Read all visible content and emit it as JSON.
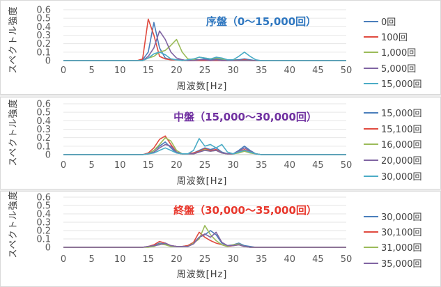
{
  "chart_data": [
    {
      "type": "line",
      "title": "序盤（0～15,000回）",
      "title_color": "#2f77c0",
      "xlabel": "周波数[Hz]",
      "ylabel": "スペクトル強度",
      "xlim": [
        0,
        50
      ],
      "ylim": [
        0,
        0.6
      ],
      "xticks": [
        0,
        5,
        10,
        15,
        20,
        25,
        30,
        35,
        40,
        45,
        50
      ],
      "yticks": [
        0,
        0.1,
        0.2,
        0.3,
        0.4,
        0.5,
        0.6
      ],
      "grid": true,
      "legend": "right",
      "x": [
        0,
        1,
        2,
        3,
        4,
        5,
        6,
        7,
        8,
        9,
        10,
        11,
        12,
        13,
        14,
        15,
        16,
        17,
        18,
        19,
        20,
        21,
        22,
        23,
        24,
        25,
        26,
        27,
        28,
        29,
        30,
        31,
        32,
        33,
        34,
        35,
        36,
        37,
        38,
        39,
        40,
        41,
        42,
        43,
        44,
        45,
        46,
        47,
        48,
        49,
        50
      ],
      "series": [
        {
          "name": "0回",
          "color": "#4a7ebb",
          "values": [
            0,
            0,
            0,
            0,
            0,
            0,
            0,
            0,
            0,
            0,
            0,
            0,
            0,
            0,
            0.01,
            0.1,
            0.45,
            0.15,
            0.03,
            0.01,
            0.01,
            0.01,
            0,
            0.01,
            0.01,
            0.02,
            0.01,
            0.02,
            0.01,
            0,
            0.01,
            0.01,
            0.02,
            0.01,
            0,
            0,
            0,
            0,
            0,
            0,
            0,
            0,
            0,
            0,
            0,
            0,
            0,
            0,
            0,
            0,
            0
          ]
        },
        {
          "name": "100回",
          "color": "#e04a3f",
          "values": [
            0,
            0,
            0,
            0,
            0,
            0,
            0,
            0,
            0,
            0,
            0,
            0,
            0,
            0,
            0.02,
            0.49,
            0.3,
            0.05,
            0.02,
            0.01,
            0.01,
            0,
            0,
            0,
            0,
            0,
            0,
            0,
            0,
            0,
            0,
            0,
            0.01,
            0,
            0,
            0,
            0,
            0,
            0,
            0,
            0,
            0,
            0,
            0,
            0,
            0,
            0,
            0,
            0,
            0,
            0
          ]
        },
        {
          "name": "1,000回",
          "color": "#9bbb59",
          "values": [
            0,
            0,
            0,
            0,
            0,
            0,
            0,
            0,
            0,
            0,
            0,
            0,
            0,
            0,
            0,
            0.03,
            0.05,
            0.1,
            0.12,
            0.18,
            0.25,
            0.1,
            0.02,
            0.01,
            0.04,
            0.03,
            0.02,
            0.03,
            0.02,
            0.01,
            0.01,
            0,
            0,
            0,
            0,
            0,
            0,
            0,
            0,
            0,
            0,
            0,
            0,
            0,
            0,
            0,
            0,
            0,
            0,
            0,
            0
          ]
        },
        {
          "name": "5,000回",
          "color": "#8064a2",
          "values": [
            0,
            0,
            0,
            0,
            0,
            0,
            0,
            0,
            0,
            0,
            0,
            0,
            0,
            0,
            0,
            0.05,
            0.15,
            0.35,
            0.25,
            0.1,
            0.03,
            0.01,
            0,
            0,
            0.01,
            0.01,
            0,
            0.01,
            0,
            0,
            0,
            0,
            0,
            0,
            0,
            0,
            0,
            0,
            0,
            0,
            0,
            0,
            0,
            0,
            0,
            0,
            0,
            0,
            0,
            0,
            0
          ]
        },
        {
          "name": "15,000回",
          "color": "#4bacc6",
          "values": [
            0,
            0,
            0,
            0,
            0,
            0,
            0,
            0,
            0,
            0,
            0,
            0,
            0,
            0,
            0,
            0.03,
            0.08,
            0.1,
            0.07,
            0.02,
            0.01,
            0,
            0.01,
            0.02,
            0.04,
            0.03,
            0.02,
            0.04,
            0.03,
            0.01,
            0.01,
            0.05,
            0.1,
            0.05,
            0.01,
            0,
            0,
            0,
            0,
            0,
            0,
            0,
            0,
            0,
            0,
            0,
            0,
            0,
            0,
            0,
            0
          ]
        }
      ]
    },
    {
      "type": "line",
      "title": "中盤（15,000～30,000回）",
      "title_color": "#7030a0",
      "xlabel": "周波数[Hz]",
      "ylabel": "スペクトル強度",
      "xlim": [
        0,
        50
      ],
      "ylim": [
        0,
        0.6
      ],
      "xticks": [
        0,
        5,
        10,
        15,
        20,
        25,
        30,
        35,
        40,
        45,
        50
      ],
      "yticks": [
        0,
        0.1,
        0.2,
        0.3,
        0.4,
        0.5,
        0.6
      ],
      "grid": true,
      "legend": "right",
      "x": [
        0,
        1,
        2,
        3,
        4,
        5,
        6,
        7,
        8,
        9,
        10,
        11,
        12,
        13,
        14,
        15,
        16,
        17,
        18,
        19,
        20,
        21,
        22,
        23,
        24,
        25,
        26,
        27,
        28,
        29,
        30,
        31,
        32,
        33,
        34,
        35,
        36,
        37,
        38,
        39,
        40,
        41,
        42,
        43,
        44,
        45,
        46,
        47,
        48,
        49,
        50
      ],
      "series": [
        {
          "name": "15,000回",
          "color": "#4a7ebb",
          "values": [
            0,
            0,
            0,
            0,
            0,
            0,
            0,
            0,
            0,
            0,
            0,
            0,
            0,
            0,
            0,
            0.01,
            0.05,
            0.1,
            0.15,
            0.08,
            0.02,
            0.01,
            0.01,
            0.02,
            0.05,
            0.08,
            0.06,
            0.08,
            0.03,
            0.01,
            0.01,
            0.05,
            0.1,
            0.05,
            0.01,
            0,
            0,
            0,
            0,
            0,
            0,
            0,
            0,
            0,
            0,
            0,
            0,
            0,
            0,
            0,
            0
          ]
        },
        {
          "name": "15,100回",
          "color": "#e04a3f",
          "values": [
            0,
            0,
            0,
            0,
            0,
            0,
            0,
            0,
            0,
            0,
            0,
            0,
            0,
            0,
            0,
            0.02,
            0.08,
            0.18,
            0.22,
            0.12,
            0.03,
            0.01,
            0.01,
            0.02,
            0.04,
            0.07,
            0.05,
            0.06,
            0.02,
            0.01,
            0.01,
            0.03,
            0.06,
            0.03,
            0.01,
            0,
            0,
            0,
            0,
            0,
            0,
            0,
            0,
            0,
            0,
            0,
            0,
            0,
            0,
            0,
            0
          ]
        },
        {
          "name": "16,000回",
          "color": "#9bbb59",
          "values": [
            0,
            0,
            0,
            0,
            0,
            0,
            0,
            0,
            0,
            0,
            0,
            0,
            0,
            0,
            0,
            0.01,
            0.05,
            0.12,
            0.2,
            0.16,
            0.05,
            0.01,
            0.01,
            0.01,
            0.03,
            0.06,
            0.04,
            0.05,
            0.02,
            0.01,
            0.01,
            0.02,
            0.04,
            0.02,
            0.01,
            0,
            0,
            0,
            0,
            0,
            0,
            0,
            0,
            0,
            0,
            0,
            0,
            0,
            0,
            0,
            0
          ]
        },
        {
          "name": "20,000回",
          "color": "#8064a2",
          "values": [
            0,
            0,
            0,
            0,
            0,
            0,
            0,
            0,
            0,
            0,
            0,
            0,
            0,
            0,
            0,
            0.01,
            0.03,
            0.08,
            0.12,
            0.1,
            0.03,
            0.01,
            0.01,
            0.01,
            0.03,
            0.05,
            0.04,
            0.05,
            0.02,
            0.01,
            0.01,
            0.04,
            0.08,
            0.04,
            0.01,
            0,
            0,
            0,
            0,
            0,
            0,
            0,
            0,
            0,
            0,
            0,
            0,
            0,
            0,
            0,
            0
          ]
        },
        {
          "name": "30,000回",
          "color": "#4bacc6",
          "values": [
            0,
            0,
            0,
            0,
            0,
            0,
            0,
            0,
            0,
            0,
            0,
            0,
            0,
            0,
            0,
            0.01,
            0.02,
            0.05,
            0.08,
            0.05,
            0.02,
            0.01,
            0.01,
            0.05,
            0.19,
            0.1,
            0.12,
            0.08,
            0.12,
            0.03,
            0.01,
            0.03,
            0.05,
            0.03,
            0.01,
            0,
            0,
            0,
            0,
            0,
            0,
            0,
            0,
            0,
            0,
            0,
            0,
            0,
            0,
            0,
            0
          ]
        }
      ]
    },
    {
      "type": "line",
      "title": "終盤（30,000～35,000回）",
      "title_color": "#e8372c",
      "xlabel": "周波数[Hz]",
      "ylabel": "スペクトル強度",
      "xlim": [
        0,
        50
      ],
      "ylim": [
        0,
        0.6
      ],
      "xticks": [
        0,
        5,
        10,
        15,
        20,
        25,
        30,
        35,
        40,
        45,
        50
      ],
      "yticks": [
        0,
        0.1,
        0.2,
        0.3,
        0.4,
        0.5,
        0.6
      ],
      "grid": true,
      "legend": "right",
      "x": [
        0,
        1,
        2,
        3,
        4,
        5,
        6,
        7,
        8,
        9,
        10,
        11,
        12,
        13,
        14,
        15,
        16,
        17,
        18,
        19,
        20,
        21,
        22,
        23,
        24,
        25,
        26,
        27,
        28,
        29,
        30,
        31,
        32,
        33,
        34,
        35,
        36,
        37,
        38,
        39,
        40,
        41,
        42,
        43,
        44,
        45,
        46,
        47,
        48,
        49,
        50
      ],
      "series": [
        {
          "name": "30,000回",
          "color": "#4a7ebb",
          "values": [
            0,
            0,
            0,
            0,
            0,
            0,
            0,
            0,
            0,
            0,
            0,
            0,
            0,
            0,
            0,
            0.01,
            0.02,
            0.05,
            0.04,
            0.02,
            0.01,
            0.01,
            0.02,
            0.05,
            0.12,
            0.15,
            0.2,
            0.15,
            0.05,
            0.02,
            0.03,
            0.05,
            0.02,
            0.01,
            0,
            0,
            0,
            0,
            0,
            0,
            0,
            0,
            0,
            0,
            0,
            0,
            0,
            0,
            0,
            0,
            0
          ]
        },
        {
          "name": "30,100回",
          "color": "#e04a3f",
          "values": [
            0,
            0,
            0,
            0,
            0,
            0,
            0,
            0,
            0,
            0,
            0,
            0,
            0,
            0,
            0,
            0.01,
            0.03,
            0.07,
            0.05,
            0.02,
            0.01,
            0.01,
            0.02,
            0.06,
            0.18,
            0.12,
            0.08,
            0.05,
            0.03,
            0.01,
            0.02,
            0.03,
            0.01,
            0,
            0,
            0,
            0,
            0,
            0,
            0,
            0,
            0,
            0,
            0,
            0,
            0,
            0,
            0,
            0,
            0,
            0
          ]
        },
        {
          "name": "31,000回",
          "color": "#9bbb59",
          "values": [
            0,
            0,
            0,
            0,
            0,
            0,
            0,
            0,
            0,
            0,
            0,
            0,
            0,
            0,
            0,
            0,
            0.01,
            0.04,
            0.03,
            0.01,
            0.01,
            0.01,
            0.01,
            0.05,
            0.1,
            0.26,
            0.15,
            0.08,
            0.03,
            0.01,
            0.03,
            0.04,
            0.01,
            0,
            0,
            0,
            0,
            0,
            0,
            0,
            0,
            0,
            0,
            0,
            0,
            0,
            0,
            0,
            0,
            0,
            0
          ]
        },
        {
          "name": "35,000回",
          "color": "#8064a2",
          "values": [
            0,
            0,
            0,
            0,
            0,
            0,
            0,
            0,
            0,
            0,
            0,
            0,
            0,
            0,
            0,
            0.01,
            0.02,
            0.03,
            0.05,
            0.02,
            0.01,
            0.01,
            0.01,
            0.04,
            0.12,
            0.16,
            0.12,
            0.18,
            0.06,
            0.02,
            0.02,
            0.03,
            0.01,
            0,
            0,
            0,
            0,
            0,
            0,
            0,
            0,
            0,
            0,
            0,
            0,
            0,
            0,
            0,
            0,
            0,
            0
          ]
        }
      ]
    }
  ]
}
